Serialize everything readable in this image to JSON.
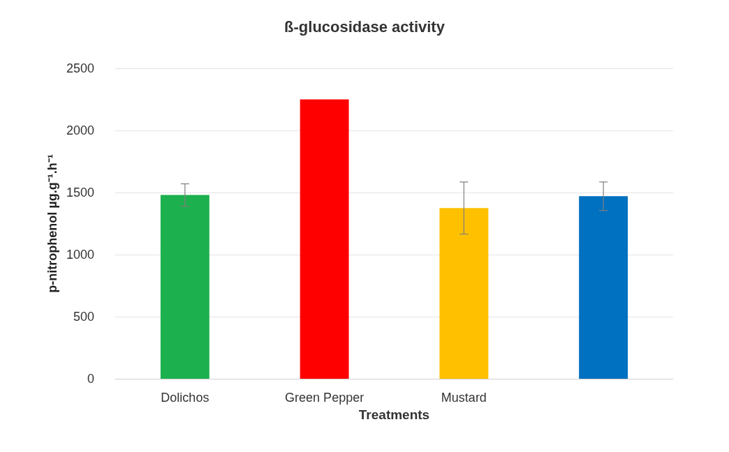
{
  "chart_data": {
    "type": "bar",
    "title": "ß-glucosidase activity",
    "xlabel": "Treatments",
    "ylabel": "p-nitrophenol µg.g⁻¹.h⁻¹",
    "categories": [
      "Dolichos",
      "Green Pepper",
      "Mustard",
      null
    ],
    "values": [
      1480,
      2250,
      1375,
      1470
    ],
    "colors": [
      "#1db04e",
      "#fe0000",
      "#ffc000",
      "#0070c0"
    ],
    "errors": [
      90,
      null,
      210,
      115
    ],
    "ylim": [
      0,
      2500
    ],
    "yticks": [
      0,
      500,
      1000,
      1500,
      2000,
      2500
    ],
    "grid": "y"
  }
}
